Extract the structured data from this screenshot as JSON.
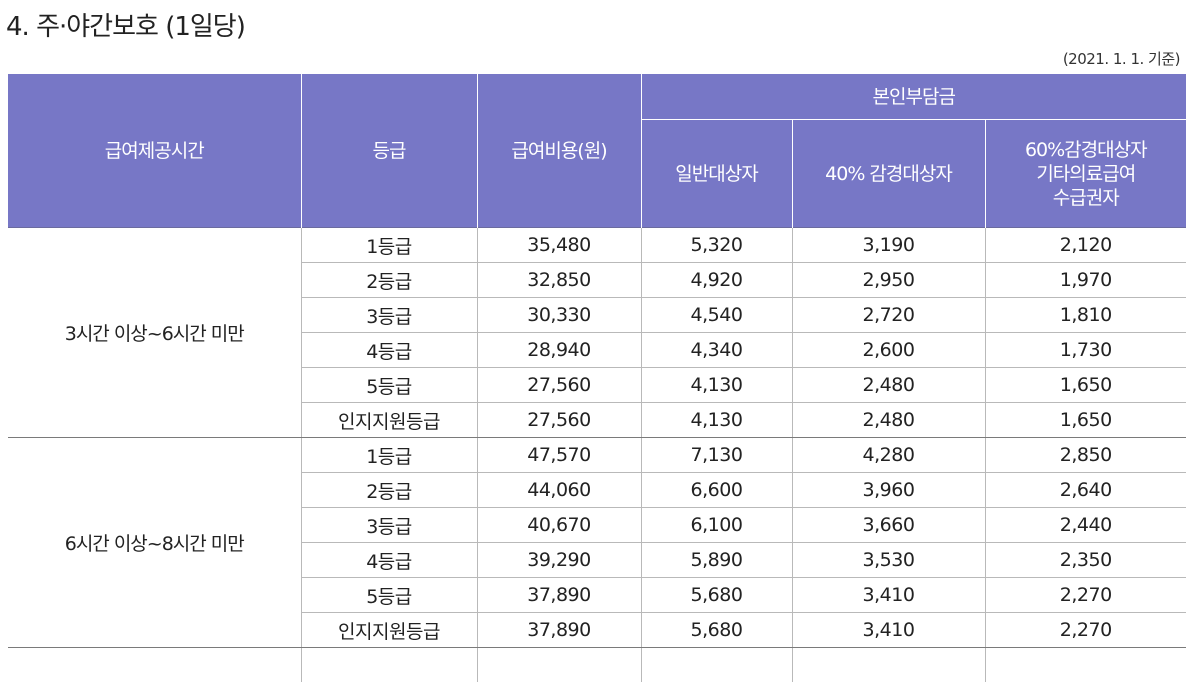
{
  "page": {
    "title": "4. 주·야간보호 (1일당)",
    "basis_date": "(2021. 1. 1. 기준)"
  },
  "table": {
    "headers": {
      "time": "급여제공시간",
      "grade": "등급",
      "cost": "급여비용(원)",
      "copay_group": "본인부담금",
      "general": "일반대상자",
      "reduced40": "40% 감경대상자",
      "reduced60_lines": [
        "60%감경대상자",
        "기타의료급여",
        "수급권자"
      ]
    },
    "groups": [
      {
        "time": "3시간 이상~6시간 미만",
        "rows": [
          {
            "grade": "1등급",
            "cost": "35,480",
            "general": "5,320",
            "reduced40": "3,190",
            "reduced60": "2,120"
          },
          {
            "grade": "2등급",
            "cost": "32,850",
            "general": "4,920",
            "reduced40": "2,950",
            "reduced60": "1,970"
          },
          {
            "grade": "3등급",
            "cost": "30,330",
            "general": "4,540",
            "reduced40": "2,720",
            "reduced60": "1,810"
          },
          {
            "grade": "4등급",
            "cost": "28,940",
            "general": "4,340",
            "reduced40": "2,600",
            "reduced60": "1,730"
          },
          {
            "grade": "5등급",
            "cost": "27,560",
            "general": "4,130",
            "reduced40": "2,480",
            "reduced60": "1,650"
          },
          {
            "grade": "인지지원등급",
            "cost": "27,560",
            "general": "4,130",
            "reduced40": "2,480",
            "reduced60": "1,650"
          }
        ]
      },
      {
        "time": "6시간 이상~8시간 미만",
        "rows": [
          {
            "grade": "1등급",
            "cost": "47,570",
            "general": "7,130",
            "reduced40": "4,280",
            "reduced60": "2,850"
          },
          {
            "grade": "2등급",
            "cost": "44,060",
            "general": "6,600",
            "reduced40": "3,960",
            "reduced60": "2,640"
          },
          {
            "grade": "3등급",
            "cost": "40,670",
            "general": "6,100",
            "reduced40": "3,660",
            "reduced60": "2,440"
          },
          {
            "grade": "4등급",
            "cost": "39,290",
            "general": "5,890",
            "reduced40": "3,530",
            "reduced60": "2,350"
          },
          {
            "grade": "5등급",
            "cost": "37,890",
            "general": "5,680",
            "reduced40": "3,410",
            "reduced60": "2,270"
          },
          {
            "grade": "인지지원등급",
            "cost": "37,890",
            "general": "5,680",
            "reduced40": "3,410",
            "reduced60": "2,270"
          }
        ]
      }
    ]
  }
}
